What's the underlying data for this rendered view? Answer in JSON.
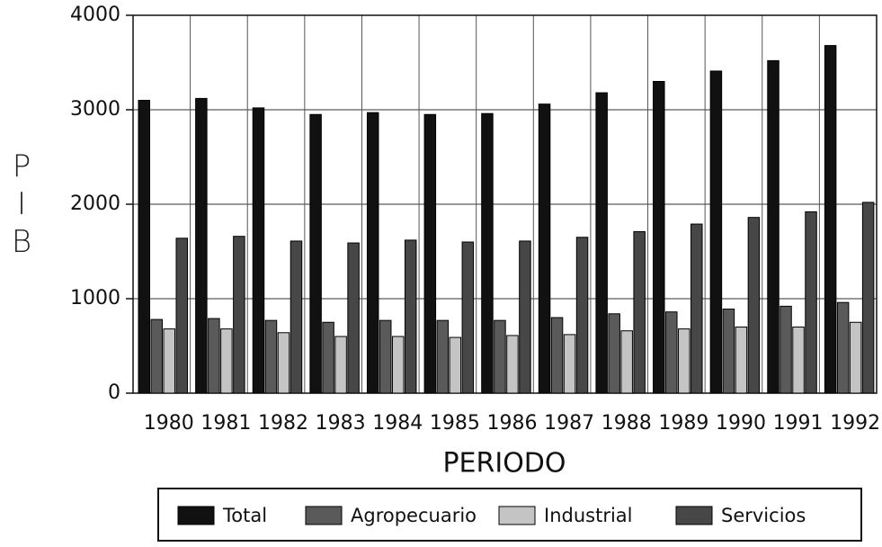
{
  "chart_data": {
    "type": "bar",
    "y_label": "PIB",
    "x_label": "PERIODO",
    "categories": [
      "1980",
      "1981",
      "1982",
      "1983",
      "1984",
      "1985",
      "1986",
      "1987",
      "1988",
      "1989",
      "1990",
      "1991",
      "1992"
    ],
    "series": [
      {
        "name": "Total",
        "color": "#111111",
        "values": [
          3100,
          3120,
          3020,
          2950,
          2970,
          2950,
          2960,
          3060,
          3180,
          3300,
          3410,
          3520,
          3680
        ]
      },
      {
        "name": "Agropecuario",
        "color": "#5a5a5a",
        "values": [
          780,
          790,
          770,
          750,
          770,
          770,
          770,
          800,
          840,
          860,
          890,
          920,
          960
        ]
      },
      {
        "name": "Industrial",
        "color": "#c4c4c4",
        "values": [
          680,
          680,
          640,
          600,
          600,
          590,
          610,
          620,
          660,
          680,
          700,
          700,
          750
        ]
      },
      {
        "name": "Servicios",
        "color": "#474747",
        "values": [
          1640,
          1660,
          1610,
          1590,
          1620,
          1600,
          1610,
          1650,
          1710,
          1790,
          1860,
          1920,
          2020
        ]
      }
    ],
    "ylim": [
      0,
      4000
    ],
    "yticks": [
      0,
      1000,
      2000,
      3000,
      4000
    ],
    "grid": true
  }
}
